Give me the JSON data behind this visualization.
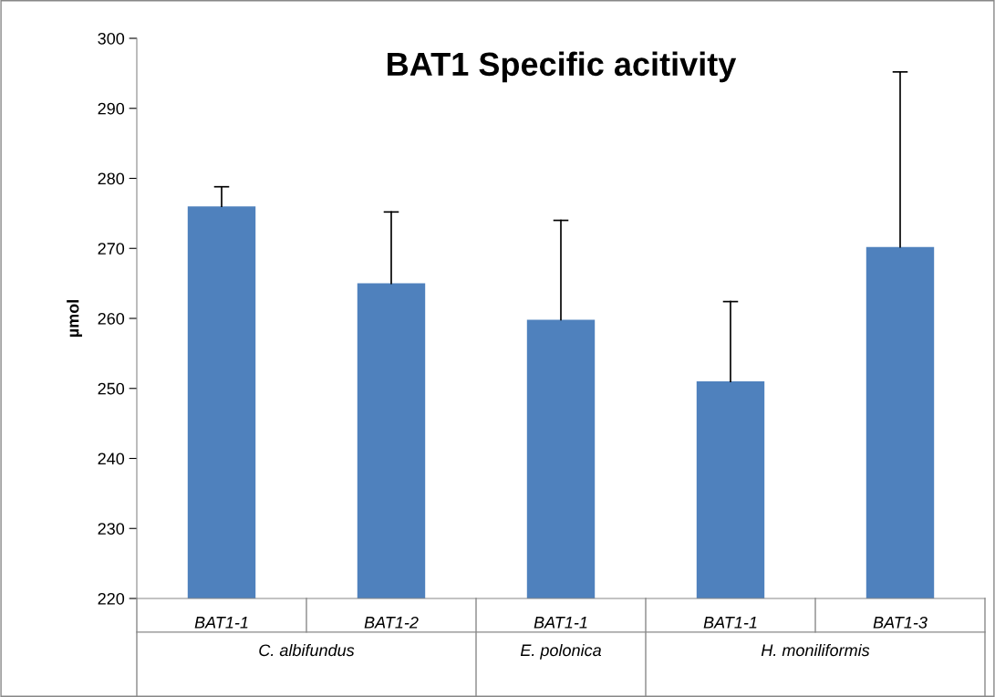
{
  "chart_data": {
    "type": "bar",
    "title": "BAT1 Specific acitivity",
    "ylabel": "µmol",
    "categories": [
      "BAT1-1",
      "BAT1-2",
      "BAT1-1",
      "BAT1-1",
      "BAT1-3"
    ],
    "values": [
      276,
      265,
      259.8,
      251,
      270.2
    ],
    "errors": [
      [
        276,
        278.8
      ],
      [
        265,
        275.2
      ],
      [
        259.8,
        274
      ],
      [
        251,
        262.4
      ],
      [
        270.2,
        295.2
      ]
    ],
    "color": "#4f81bd",
    "annotations": [
      "C. albifundus",
      "E. polonica",
      "H. moniliformis"
    ],
    "ylim": [
      220,
      300
    ],
    "yticks": [
      220,
      230,
      240,
      250,
      260,
      270,
      280,
      290,
      300
    ],
    "grid": false,
    "legend": false
  }
}
